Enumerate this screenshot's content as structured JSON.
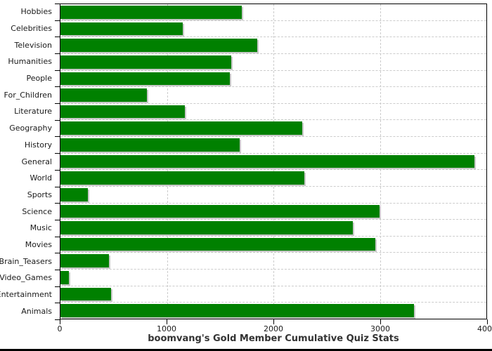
{
  "chart_data": {
    "type": "bar",
    "orientation": "horizontal",
    "title": "boomvang's Gold Member Cumulative Quiz Stats",
    "categories": [
      "Hobbies",
      "Celebrities",
      "Television",
      "Humanities",
      "People",
      "For_Children",
      "Literature",
      "Geography",
      "History",
      "General",
      "World",
      "Sports",
      "Science",
      "Music",
      "Movies",
      "Brain_Teasers",
      "Video_Games",
      "Entertainment",
      "Animals"
    ],
    "values": [
      1700,
      1150,
      1845,
      1605,
      1590,
      815,
      1170,
      2270,
      1685,
      3890,
      2290,
      255,
      2995,
      2745,
      2960,
      455,
      80,
      475,
      3320
    ],
    "xlabel": "",
    "ylabel": "",
    "xlim": [
      0,
      4000
    ],
    "x_ticks": [
      0,
      1000,
      2000,
      3000,
      4000
    ],
    "grid": "dashed horizontal row separators and vertical lines at interior ticks",
    "legend": "none",
    "bar_color": "#008000",
    "bar_shadow_color": "#c9c9c9",
    "grid_color": "#cccccc",
    "axis_color": "#000000",
    "title_color": "#333333",
    "background": "#ffffff"
  }
}
